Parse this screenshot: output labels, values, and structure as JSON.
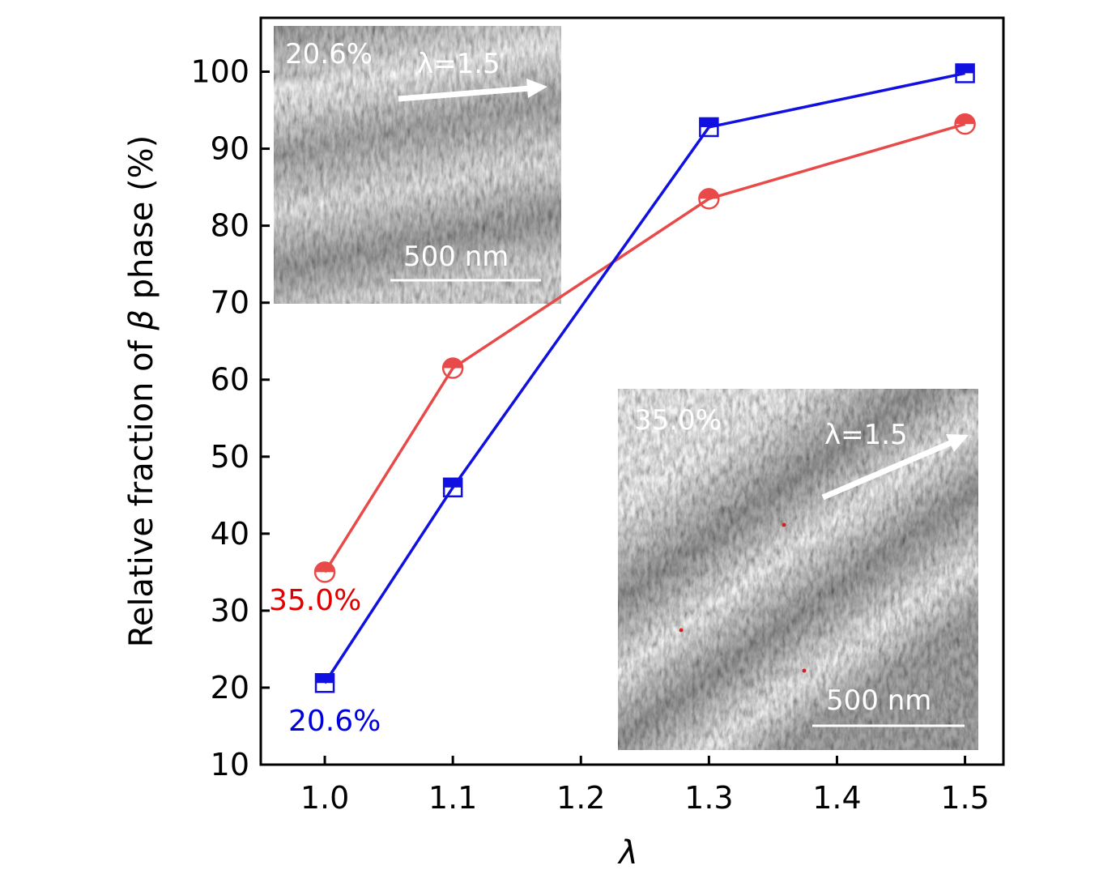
{
  "chart_data": {
    "type": "line",
    "title": "",
    "xlabel": "λ",
    "ylabel_prefix": "Relative fraction of ",
    "ylabel_symbol": "β",
    "ylabel_suffix": " phase (%)",
    "xlim": [
      0.95,
      1.53
    ],
    "ylim": [
      10,
      107
    ],
    "x_ticks": [
      1.0,
      1.1,
      1.2,
      1.3,
      1.4,
      1.5
    ],
    "x_tick_labels": [
      "1.0",
      "1.1",
      "1.2",
      "1.3",
      "1.4",
      "1.5"
    ],
    "y_ticks": [
      10,
      20,
      30,
      40,
      50,
      60,
      70,
      80,
      90,
      100
    ],
    "y_tick_labels": [
      "10",
      "20",
      "30",
      "40",
      "50",
      "60",
      "70",
      "80",
      "90",
      "100"
    ],
    "grid": false,
    "series": [
      {
        "name": "circle-series",
        "color": "#e84a4a",
        "marker": "half-filled circle",
        "x": [
          1.0,
          1.1,
          1.3,
          1.5
        ],
        "y": [
          35.0,
          61.5,
          83.5,
          93.2
        ],
        "annotation": "35.0%",
        "annotation_color": "#e00000"
      },
      {
        "name": "square-series",
        "color": "#1010e0",
        "marker": "half-filled square",
        "x": [
          1.0,
          1.1,
          1.3,
          1.5
        ],
        "y": [
          20.6,
          46.0,
          92.8,
          99.8
        ],
        "annotation": "20.6%",
        "annotation_color": "#0000dd"
      }
    ],
    "insets": [
      {
        "name": "inset-top-left",
        "position": "top-left",
        "percent_label": "20.6%",
        "stretch_label": "λ=1.5",
        "scale_label": "500 nm"
      },
      {
        "name": "inset-bottom-right",
        "position": "bottom-right",
        "percent_label": "35.0%",
        "stretch_label": "λ=1.5",
        "scale_label": "500 nm"
      }
    ]
  }
}
